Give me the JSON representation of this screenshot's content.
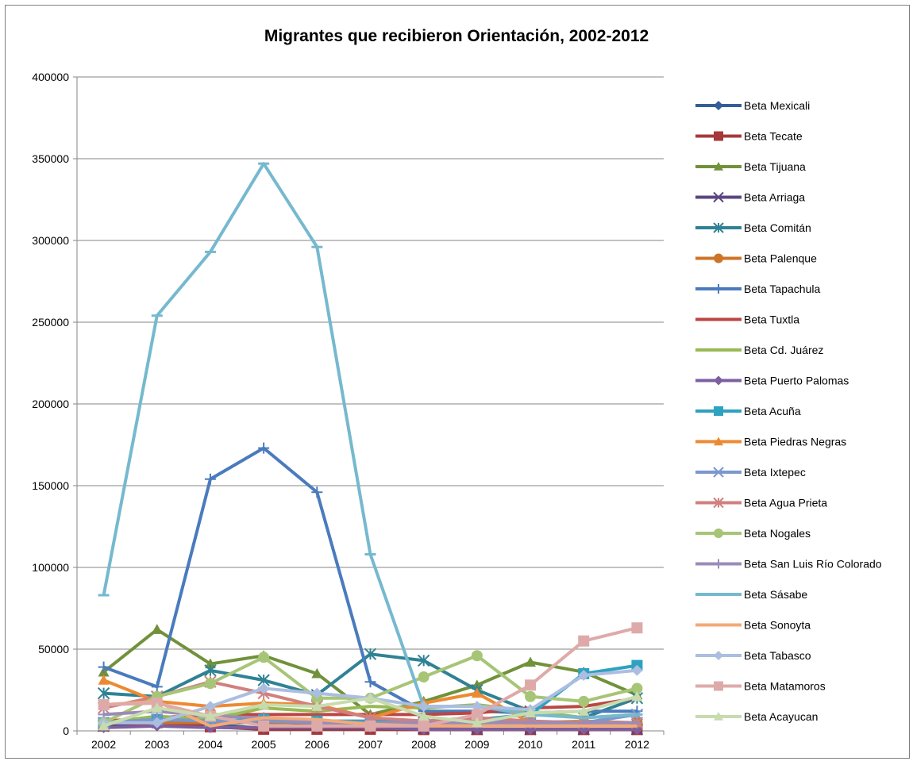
{
  "chart_data": {
    "type": "line",
    "title": "Migrantes que recibieron Orientación, 2002-2012",
    "xlabel": "",
    "ylabel": "",
    "x": [
      "2002",
      "2003",
      "2004",
      "2005",
      "2006",
      "2007",
      "2008",
      "2009",
      "2010",
      "2011",
      "2012"
    ],
    "ylim": [
      0,
      400000
    ],
    "yticks": [
      "0",
      "50000",
      "100000",
      "150000",
      "200000",
      "250000",
      "300000",
      "350000",
      "400000"
    ],
    "grid": true,
    "legend_position": "right",
    "series": [
      {
        "name": "Beta Mexicali",
        "color": "#335e96",
        "marker": "diamond",
        "values": [
          3000,
          6000,
          4000,
          1500,
          1500,
          1500,
          1000,
          1000,
          1000,
          1000,
          1000
        ]
      },
      {
        "name": "Beta Tecate",
        "color": "#a5383a",
        "marker": "square",
        "values": [
          3000,
          5000,
          2500,
          1000,
          1000,
          1000,
          800,
          800,
          800,
          800,
          800
        ]
      },
      {
        "name": "Beta Tijuana",
        "color": "#71913a",
        "marker": "triangle",
        "values": [
          36000,
          62000,
          41000,
          46000,
          35000,
          10000,
          18000,
          28000,
          42000,
          36000,
          22000
        ]
      },
      {
        "name": "Beta Arriaga",
        "color": "#5a4580",
        "marker": "x",
        "values": [
          3000,
          6000,
          6000,
          6000,
          4000,
          3000,
          1500,
          1000,
          1000,
          1000,
          1000
        ]
      },
      {
        "name": "Beta Comitán",
        "color": "#2f8294",
        "marker": "star",
        "values": [
          23000,
          21000,
          37000,
          31000,
          22000,
          47000,
          43000,
          25000,
          12000,
          8000,
          20000
        ]
      },
      {
        "name": "Beta Palenque",
        "color": "#cd7428",
        "marker": "circle",
        "values": [
          5000,
          5000,
          5000,
          5000,
          5000,
          5000,
          5000,
          5000,
          5000,
          5000,
          5000
        ]
      },
      {
        "name": "Beta Tapachula",
        "color": "#4a7bbd",
        "marker": "plus",
        "values": [
          39000,
          27000,
          154000,
          173000,
          146000,
          30000,
          12000,
          12000,
          11000,
          12000,
          12000
        ]
      },
      {
        "name": "Beta Tuxtla",
        "color": "#bb4643",
        "marker": "none",
        "values": [
          6000,
          8000,
          10000,
          10000,
          10000,
          10000,
          10000,
          11000,
          14000,
          15000,
          20000
        ]
      },
      {
        "name": "Beta Cd. Juárez",
        "color": "#98b954",
        "marker": "none",
        "values": [
          5000,
          9000,
          7000,
          14000,
          12000,
          15000,
          14000,
          16000,
          12000,
          8000,
          10000
        ]
      },
      {
        "name": "Beta Puerto Palomas",
        "color": "#7d5fa0",
        "marker": "diamond",
        "values": [
          2000,
          3000,
          2000,
          2000,
          2000,
          2000,
          1000,
          1000,
          1000,
          1000,
          1000
        ]
      },
      {
        "name": "Beta Acuña",
        "color": "#2ea2c0",
        "marker": "square",
        "values": [
          5000,
          7000,
          6000,
          7000,
          6000,
          6000,
          6000,
          7000,
          10000,
          35000,
          40000
        ]
      },
      {
        "name": "Beta Piedras Negras",
        "color": "#ec8a33",
        "marker": "triangle",
        "values": [
          31000,
          18000,
          15000,
          17000,
          16000,
          8000,
          17000,
          23000,
          5000,
          6000,
          5000
        ]
      },
      {
        "name": "Beta Ixtepec",
        "color": "#7b97cd",
        "marker": "x",
        "values": [
          5000,
          7000,
          6000,
          6000,
          5000,
          5000,
          5000,
          6000,
          5000,
          5000,
          10000
        ]
      },
      {
        "name": "Beta Agua Prieta",
        "color": "#d1807e",
        "marker": "star",
        "values": [
          14000,
          21000,
          30000,
          23000,
          15000,
          8000,
          6000,
          8000,
          6000,
          5000,
          5000
        ]
      },
      {
        "name": "Beta Nogales",
        "color": "#a7c576",
        "marker": "circle",
        "values": [
          5000,
          21000,
          29000,
          45000,
          20000,
          20000,
          33000,
          46000,
          21000,
          18000,
          26000
        ]
      },
      {
        "name": "Beta San Luis Río Colorado",
        "color": "#9b8bb8",
        "marker": "plus",
        "values": [
          10000,
          12000,
          9000,
          8000,
          5000,
          5000,
          5000,
          5000,
          5000,
          5000,
          5000
        ]
      },
      {
        "name": "Beta Sásabe",
        "color": "#76b9cf",
        "marker": "dash",
        "values": [
          83000,
          254000,
          293000,
          347000,
          296000,
          108000,
          15000,
          15000,
          10000,
          8000,
          10000
        ]
      },
      {
        "name": "Beta Sonoyta",
        "color": "#f2aa78",
        "marker": "none",
        "values": [
          16000,
          18000,
          3000,
          8000,
          7000,
          4000,
          3000,
          3000,
          3000,
          3000,
          3000
        ]
      },
      {
        "name": "Beta Tabasco",
        "color": "#acbee0",
        "marker": "diamond",
        "values": [
          5000,
          5000,
          15000,
          26000,
          23000,
          20000,
          15000,
          15000,
          13000,
          34000,
          37000
        ]
      },
      {
        "name": "Beta Matamoros",
        "color": "#deaaa9",
        "marker": "square",
        "values": [
          16000,
          17000,
          9000,
          3000,
          3000,
          3000,
          3000,
          10000,
          28000,
          55000,
          63000
        ]
      },
      {
        "name": "Beta Acayucan",
        "color": "#c7dbad",
        "marker": "triangle",
        "values": [
          3000,
          14000,
          9000,
          16000,
          15000,
          20000,
          9000,
          5000,
          11000,
          12000,
          21000
        ]
      }
    ]
  }
}
